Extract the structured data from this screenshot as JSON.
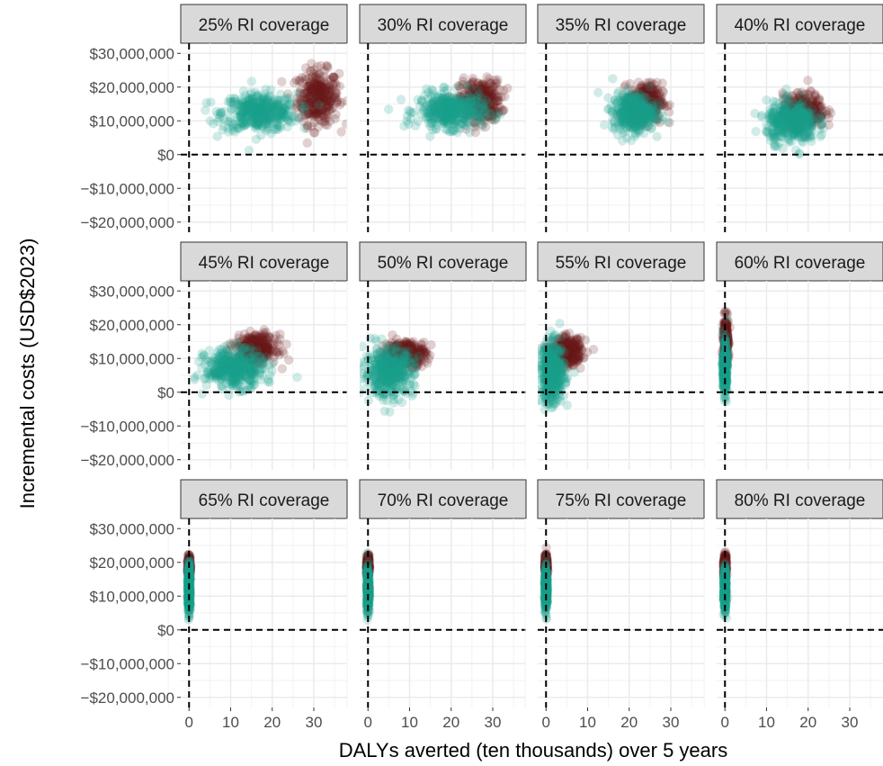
{
  "chart_data": {
    "type": "scatter",
    "title": "",
    "xlabel": "DALYs averted (ten thousands) over 5 years",
    "ylabel": "Incremental costs (USD$2023)",
    "xlim": [
      -2,
      38
    ],
    "ylim": [
      -23000000,
      33000000
    ],
    "x_ticks": [
      0,
      10,
      20,
      30
    ],
    "x_tick_labels": [
      "0",
      "10",
      "20",
      "30"
    ],
    "y_ticks": [
      -20000000,
      -10000000,
      0,
      10000000,
      20000000,
      30000000
    ],
    "y_tick_labels": [
      "−$20,000,000",
      "−$10,000,000",
      "$0",
      "$10,000,000",
      "$20,000,000",
      "$30,000,000"
    ],
    "reference_lines": {
      "x": 0,
      "y": 0
    },
    "grid": true,
    "legend": "none",
    "facet_layout": {
      "rows": 3,
      "cols": 4
    },
    "series_colors": {
      "dark": "#6b1a1a",
      "teal": "#1a9e8a"
    },
    "panels": [
      {
        "label": "25% RI coverage",
        "teal": {
          "cx": 17,
          "cy": 12500000,
          "sx": 4.5,
          "sy": 2800000
        },
        "dark": {
          "cx": 31,
          "cy": 17000000,
          "sx": 2.5,
          "sy": 4000000
        }
      },
      {
        "label": "30% RI coverage",
        "teal": {
          "cx": 20,
          "cy": 13000000,
          "sx": 4.0,
          "sy": 2600000
        },
        "dark": {
          "cx": 27,
          "cy": 16000000,
          "sx": 2.5,
          "sy": 3000000
        }
      },
      {
        "label": "35% RI coverage",
        "teal": {
          "cx": 21,
          "cy": 12500000,
          "sx": 2.5,
          "sy": 2800000
        },
        "dark": {
          "cx": 24,
          "cy": 15500000,
          "sx": 2.0,
          "sy": 2800000
        }
      },
      {
        "label": "40% RI coverage",
        "teal": {
          "cx": 16,
          "cy": 9500000,
          "sx": 3.0,
          "sy": 3000000
        },
        "dark": {
          "cx": 19,
          "cy": 13000000,
          "sx": 2.5,
          "sy": 2500000
        }
      },
      {
        "label": "45% RI coverage",
        "teal": {
          "cx": 11,
          "cy": 7000000,
          "sx": 3.5,
          "sy": 2800000
        },
        "dark": {
          "cx": 16,
          "cy": 13000000,
          "sx": 2.5,
          "sy": 2000000
        }
      },
      {
        "label": "50% RI coverage",
        "teal": {
          "cx": 5,
          "cy": 6000000,
          "sx": 3.0,
          "sy": 3500000
        },
        "dark": {
          "cx": 9,
          "cy": 11500000,
          "sx": 2.5,
          "sy": 1800000
        }
      },
      {
        "label": "55% RI coverage",
        "teal": {
          "cx": 1.5,
          "cy": 5500000,
          "sx": 1.5,
          "sy": 4500000
        },
        "dark": {
          "cx": 5,
          "cy": 12000000,
          "sx": 1.8,
          "sy": 2000000
        }
      },
      {
        "label": "60% RI coverage",
        "teal": {
          "cx": 0,
          "cy": 7000000,
          "sx": 0.25,
          "sy": 3500000
        },
        "dark": {
          "cx": 0.2,
          "cy": 15000000,
          "sx": 0.3,
          "sy": 3500000
        }
      },
      {
        "label": "65% RI coverage",
        "teal": {
          "cx": 0,
          "cy": 12000000,
          "sx": 0.15,
          "sy": 3500000
        },
        "dark": {
          "cx": 0,
          "cy": 18500000,
          "sx": 0.15,
          "sy": 1500000
        }
      },
      {
        "label": "70% RI coverage",
        "teal": {
          "cx": 0,
          "cy": 12000000,
          "sx": 0.15,
          "sy": 3000000
        },
        "dark": {
          "cx": 0,
          "cy": 19000000,
          "sx": 0.15,
          "sy": 1500000
        }
      },
      {
        "label": "75% RI coverage",
        "teal": {
          "cx": 0,
          "cy": 12000000,
          "sx": 0.15,
          "sy": 2800000
        },
        "dark": {
          "cx": 0,
          "cy": 19000000,
          "sx": 0.15,
          "sy": 1500000
        }
      },
      {
        "label": "80% RI coverage",
        "teal": {
          "cx": 0,
          "cy": 12000000,
          "sx": 0.15,
          "sy": 2800000
        },
        "dark": {
          "cx": 0,
          "cy": 19000000,
          "sx": 0.15,
          "sy": 1500000
        }
      }
    ]
  }
}
